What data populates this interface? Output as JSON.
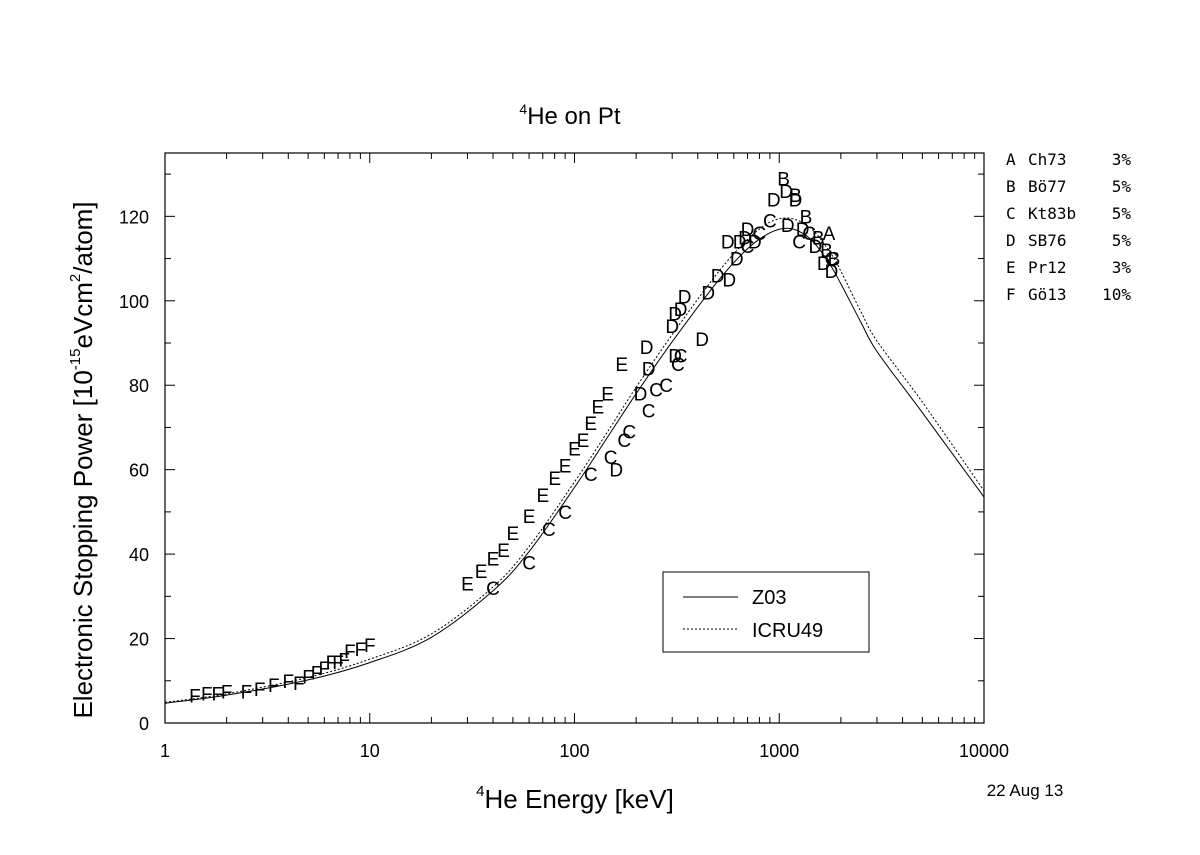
{
  "chart_data": {
    "type": "scatter",
    "title": "He on Pt",
    "title_superscript": "4",
    "xlabel": "He Energy [keV]",
    "xlabel_superscript": "4",
    "ylabel_main": "Electronic Stopping Power [10",
    "ylabel_exp": "-15",
    "ylabel_mid": "eVcm",
    "ylabel_sq": "2",
    "ylabel_end": "/atom]",
    "date": "22 Aug 13",
    "xscale": "log",
    "xlim": [
      1,
      10000
    ],
    "ylim": [
      0,
      135
    ],
    "xticks": [
      1,
      10,
      100,
      1000,
      10000
    ],
    "xtick_labels": [
      "1",
      "10",
      "100",
      "1000",
      "10000"
    ],
    "yticks": [
      0,
      20,
      40,
      60,
      80,
      100,
      120
    ],
    "ytick_labels": [
      "0",
      "20",
      "40",
      "60",
      "80",
      "100",
      "120"
    ],
    "lines": [
      {
        "name": "Z03",
        "style": "solid",
        "x": [
          1,
          2,
          5,
          10,
          20,
          40,
          60,
          100,
          150,
          200,
          300,
          500,
          700,
          900,
          1100,
          1300,
          1500,
          1800,
          2000,
          2500,
          3000,
          5000,
          10000
        ],
        "y": [
          4.7,
          6.6,
          10.2,
          14.3,
          20.3,
          31.3,
          40.6,
          55.8,
          68.8,
          78.0,
          90.3,
          104.6,
          112.3,
          116.1,
          117.2,
          116.0,
          113.4,
          108.0,
          104.0,
          95.0,
          88.0,
          73.5,
          53.5
        ]
      },
      {
        "name": "ICRU49",
        "style": "dotted",
        "x": [
          1,
          2,
          5,
          10,
          20,
          40,
          60,
          100,
          150,
          200,
          300,
          500,
          700,
          900,
          1100,
          1300,
          1500,
          1800,
          2000,
          2500,
          3000,
          5000,
          10000
        ],
        "y": [
          4.9,
          6.9,
          10.8,
          15.1,
          21.1,
          32.2,
          41.8,
          57.1,
          70.1,
          79.5,
          92.0,
          106.6,
          114.5,
          118.6,
          119.6,
          118.5,
          116.1,
          111.0,
          107.0,
          97.5,
          90.5,
          76.0,
          55.0
        ]
      }
    ],
    "legend": {
      "position": "bottom-right",
      "entries": [
        "Z03",
        "ICRU49"
      ]
    },
    "datasets_key": [
      {
        "letter": "A",
        "source": "Ch73",
        "error": "3%"
      },
      {
        "letter": "B",
        "source": "Bö77",
        "error": "5%"
      },
      {
        "letter": "C",
        "source": "Kt83b",
        "error": "5%"
      },
      {
        "letter": "D",
        "source": "SB76",
        "error": "5%"
      },
      {
        "letter": "E",
        "source": "Pr12",
        "error": "3%"
      },
      {
        "letter": "F",
        "source": "Gö13",
        "error": "10%"
      }
    ],
    "points": [
      {
        "letter": "A",
        "x": 1750,
        "y": 116
      },
      {
        "letter": "B",
        "x": 1050,
        "y": 129
      },
      {
        "letter": "B",
        "x": 1200,
        "y": 125
      },
      {
        "letter": "B",
        "x": 1350,
        "y": 120
      },
      {
        "letter": "B",
        "x": 1550,
        "y": 115
      },
      {
        "letter": "B",
        "x": 1700,
        "y": 112
      },
      {
        "letter": "B",
        "x": 1850,
        "y": 110
      },
      {
        "letter": "C",
        "x": 40,
        "y": 32
      },
      {
        "letter": "C",
        "x": 60,
        "y": 38
      },
      {
        "letter": "C",
        "x": 75,
        "y": 46
      },
      {
        "letter": "C",
        "x": 90,
        "y": 50
      },
      {
        "letter": "C",
        "x": 120,
        "y": 59
      },
      {
        "letter": "C",
        "x": 150,
        "y": 63
      },
      {
        "letter": "C",
        "x": 175,
        "y": 67
      },
      {
        "letter": "C",
        "x": 185,
        "y": 69
      },
      {
        "letter": "C",
        "x": 230,
        "y": 74
      },
      {
        "letter": "C",
        "x": 250,
        "y": 79
      },
      {
        "letter": "C",
        "x": 280,
        "y": 80
      },
      {
        "letter": "C",
        "x": 320,
        "y": 85
      },
      {
        "letter": "C",
        "x": 330,
        "y": 87
      },
      {
        "letter": "C",
        "x": 700,
        "y": 113
      },
      {
        "letter": "C",
        "x": 800,
        "y": 116
      },
      {
        "letter": "C",
        "x": 900,
        "y": 119
      },
      {
        "letter": "C",
        "x": 1250,
        "y": 114
      },
      {
        "letter": "C",
        "x": 1400,
        "y": 116
      },
      {
        "letter": "C",
        "x": 1800,
        "y": 110
      },
      {
        "letter": "D",
        "x": 160,
        "y": 60
      },
      {
        "letter": "D",
        "x": 225,
        "y": 89
      },
      {
        "letter": "D",
        "x": 230,
        "y": 84
      },
      {
        "letter": "D",
        "x": 210,
        "y": 78
      },
      {
        "letter": "D",
        "x": 300,
        "y": 94
      },
      {
        "letter": "D",
        "x": 310,
        "y": 97
      },
      {
        "letter": "D",
        "x": 330,
        "y": 98
      },
      {
        "letter": "D",
        "x": 345,
        "y": 101
      },
      {
        "letter": "D",
        "x": 310,
        "y": 87
      },
      {
        "letter": "D",
        "x": 420,
        "y": 91
      },
      {
        "letter": "D",
        "x": 450,
        "y": 102
      },
      {
        "letter": "D",
        "x": 500,
        "y": 106
      },
      {
        "letter": "D",
        "x": 570,
        "y": 105
      },
      {
        "letter": "D",
        "x": 560,
        "y": 114
      },
      {
        "letter": "D",
        "x": 620,
        "y": 110
      },
      {
        "letter": "D",
        "x": 640,
        "y": 114
      },
      {
        "letter": "D",
        "x": 680,
        "y": 115
      },
      {
        "letter": "D",
        "x": 700,
        "y": 117
      },
      {
        "letter": "D",
        "x": 760,
        "y": 114
      },
      {
        "letter": "D",
        "x": 940,
        "y": 124
      },
      {
        "letter": "D",
        "x": 1080,
        "y": 126
      },
      {
        "letter": "D",
        "x": 1200,
        "y": 124
      },
      {
        "letter": "D",
        "x": 1100,
        "y": 118
      },
      {
        "letter": "D",
        "x": 1300,
        "y": 117
      },
      {
        "letter": "D",
        "x": 1500,
        "y": 113
      },
      {
        "letter": "D",
        "x": 1650,
        "y": 109
      },
      {
        "letter": "D",
        "x": 1800,
        "y": 107
      },
      {
        "letter": "E",
        "x": 30,
        "y": 33
      },
      {
        "letter": "E",
        "x": 35,
        "y": 36
      },
      {
        "letter": "E",
        "x": 40,
        "y": 39
      },
      {
        "letter": "E",
        "x": 45,
        "y": 41
      },
      {
        "letter": "E",
        "x": 50,
        "y": 45
      },
      {
        "letter": "E",
        "x": 60,
        "y": 49
      },
      {
        "letter": "E",
        "x": 70,
        "y": 54
      },
      {
        "letter": "E",
        "x": 80,
        "y": 58
      },
      {
        "letter": "E",
        "x": 90,
        "y": 61
      },
      {
        "letter": "E",
        "x": 100,
        "y": 65
      },
      {
        "letter": "E",
        "x": 110,
        "y": 67
      },
      {
        "letter": "E",
        "x": 120,
        "y": 71
      },
      {
        "letter": "E",
        "x": 130,
        "y": 75
      },
      {
        "letter": "E",
        "x": 145,
        "y": 78
      },
      {
        "letter": "E",
        "x": 170,
        "y": 85
      },
      {
        "letter": "F",
        "x": 1.4,
        "y": 6.5
      },
      {
        "letter": "F",
        "x": 1.6,
        "y": 7
      },
      {
        "letter": "F",
        "x": 1.8,
        "y": 7
      },
      {
        "letter": "F",
        "x": 2.0,
        "y": 7.5
      },
      {
        "letter": "F",
        "x": 2.5,
        "y": 7.5
      },
      {
        "letter": "F",
        "x": 2.9,
        "y": 8
      },
      {
        "letter": "F",
        "x": 3.4,
        "y": 9
      },
      {
        "letter": "F",
        "x": 4.0,
        "y": 10
      },
      {
        "letter": "F",
        "x": 4.5,
        "y": 9.5
      },
      {
        "letter": "F",
        "x": 5.0,
        "y": 11
      },
      {
        "letter": "F",
        "x": 5.5,
        "y": 12
      },
      {
        "letter": "F",
        "x": 6.0,
        "y": 13
      },
      {
        "letter": "F",
        "x": 6.5,
        "y": 14.5
      },
      {
        "letter": "F",
        "x": 7.0,
        "y": 14.5
      },
      {
        "letter": "F",
        "x": 7.5,
        "y": 15
      },
      {
        "letter": "F",
        "x": 8.0,
        "y": 17
      },
      {
        "letter": "F",
        "x": 9.0,
        "y": 17.5
      },
      {
        "letter": "F",
        "x": 10.0,
        "y": 18.5
      }
    ]
  }
}
